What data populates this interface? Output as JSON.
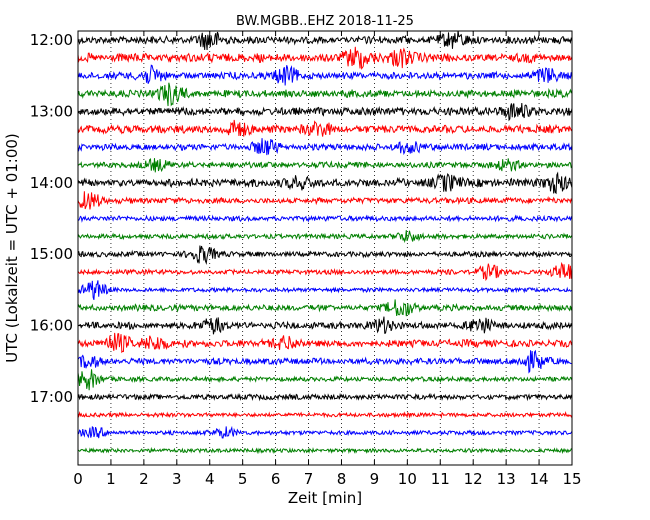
{
  "chart_data": {
    "type": "line",
    "title": "BW.MGBB..EHZ 2018-11-25",
    "xlabel": "Zeit  [min]",
    "ylabel": "UTC (Lokalzeit = UTC + 01:00)",
    "xlim": [
      0,
      15
    ],
    "x_ticks": [
      0,
      1,
      2,
      3,
      4,
      5,
      6,
      7,
      8,
      9,
      10,
      11,
      12,
      13,
      14,
      15
    ],
    "x_tick_labels": [
      "0",
      "1",
      "2",
      "3",
      "4",
      "5",
      "6",
      "7",
      "8",
      "9",
      "10",
      "11",
      "12",
      "13",
      "14",
      "15"
    ],
    "y_ticks": [
      "12:00",
      "13:00",
      "14:00",
      "15:00",
      "16:00",
      "17:00"
    ],
    "grid": "vertical dotted",
    "trace_interval_min": 15,
    "start_time": "12:00",
    "trace_colors": [
      "#000000",
      "#ff0000",
      "#0000ff",
      "#008000"
    ],
    "traces": [
      {
        "start": "12:00",
        "bursts": [
          [
            4.0,
            0.9
          ],
          [
            11.4,
            0.8
          ]
        ],
        "level": 0.45
      },
      {
        "start": "12:15",
        "bursts": [
          [
            8.5,
            1.0
          ],
          [
            9.8,
            0.7
          ]
        ],
        "level": 0.6
      },
      {
        "start": "12:30",
        "bursts": [
          [
            2.2,
            0.8
          ],
          [
            6.3,
            0.9
          ],
          [
            14.2,
            0.8
          ]
        ],
        "level": 0.4
      },
      {
        "start": "12:45",
        "bursts": [
          [
            2.8,
            1.0
          ]
        ],
        "level": 0.45
      },
      {
        "start": "13:00",
        "bursts": [
          [
            13.3,
            0.9
          ]
        ],
        "level": 0.5
      },
      {
        "start": "13:15",
        "bursts": [
          [
            4.8,
            0.7
          ],
          [
            7.3,
            0.7
          ]
        ],
        "level": 0.5
      },
      {
        "start": "13:30",
        "bursts": [
          [
            5.7,
            0.8
          ],
          [
            10.0,
            0.6
          ]
        ],
        "level": 0.35
      },
      {
        "start": "13:45",
        "bursts": [
          [
            2.4,
            0.5
          ],
          [
            13.0,
            0.5
          ]
        ],
        "level": 0.3
      },
      {
        "start": "14:00",
        "bursts": [
          [
            6.7,
            0.6
          ],
          [
            11.2,
            0.7
          ],
          [
            14.5,
            0.8
          ]
        ],
        "level": 0.5
      },
      {
        "start": "14:15",
        "bursts": [
          [
            0.3,
            0.9
          ]
        ],
        "level": 0.3
      },
      {
        "start": "14:30",
        "bursts": [],
        "level": 0.25
      },
      {
        "start": "14:45",
        "bursts": [
          [
            10.0,
            0.5
          ]
        ],
        "level": 0.2
      },
      {
        "start": "15:00",
        "bursts": [
          [
            3.8,
            0.9
          ]
        ],
        "level": 0.25
      },
      {
        "start": "15:15",
        "bursts": [
          [
            12.5,
            0.7
          ],
          [
            14.8,
            0.9
          ]
        ],
        "level": 0.2
      },
      {
        "start": "15:30",
        "bursts": [
          [
            0.5,
            1.0
          ]
        ],
        "level": 0.15
      },
      {
        "start": "15:45",
        "bursts": [
          [
            9.8,
            0.9
          ]
        ],
        "level": 0.35
      },
      {
        "start": "16:00",
        "bursts": [
          [
            4.1,
            0.7
          ],
          [
            9.2,
            0.8
          ],
          [
            12.2,
            0.8
          ]
        ],
        "level": 0.4
      },
      {
        "start": "16:15",
        "bursts": [
          [
            1.2,
            0.9
          ],
          [
            2.3,
            0.7
          ],
          [
            6.3,
            0.7
          ]
        ],
        "level": 0.45
      },
      {
        "start": "16:30",
        "bursts": [
          [
            0.3,
            0.6
          ],
          [
            13.8,
            1.0
          ]
        ],
        "level": 0.35
      },
      {
        "start": "16:45",
        "bursts": [
          [
            0.3,
            1.0
          ]
        ],
        "level": 0.2
      },
      {
        "start": "17:00",
        "bursts": [],
        "level": 0.25
      },
      {
        "start": "17:15",
        "bursts": [],
        "level": 0.15
      },
      {
        "start": "17:30",
        "bursts": [
          [
            4.5,
            0.5
          ],
          [
            0.5,
            0.5
          ]
        ],
        "level": 0.15
      },
      {
        "start": "17:45",
        "bursts": [],
        "level": 0.12
      }
    ]
  }
}
